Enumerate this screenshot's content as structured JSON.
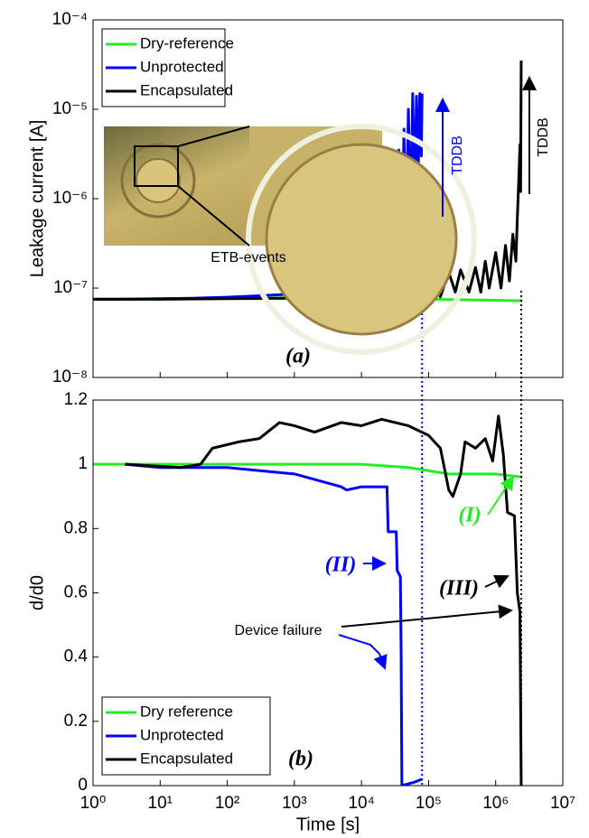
{
  "chart_data": [
    {
      "type": "line",
      "ylabel": "Leakage current [A]",
      "x_log": true,
      "y_log": true,
      "xlim": [
        1,
        10000000
      ],
      "ylim": [
        1e-08,
        0.0001
      ],
      "yticks": [
        {
          "value": 1e-08,
          "label": "10⁻⁸"
        },
        {
          "value": 1e-07,
          "label": "10⁻⁷"
        },
        {
          "value": 1e-06,
          "label": "10⁻⁶"
        },
        {
          "value": 1e-05,
          "label": "10⁻⁵"
        },
        {
          "value": 0.0001,
          "label": "10⁻⁴"
        }
      ],
      "legend": "upper left",
      "annotations": [
        "ETB-events",
        "TDDB",
        "TDDB",
        "(a)"
      ],
      "series": [
        {
          "name": "Dry-reference",
          "color": "#22ee22",
          "x": [
            1,
            10,
            100,
            1000,
            10000,
            100000,
            1000000,
            2500000
          ],
          "values": [
            7.5e-08,
            7.6e-08,
            7.7e-08,
            7.8e-08,
            7.7e-08,
            7.5e-08,
            7.3e-08,
            7.2e-08
          ]
        },
        {
          "name": "Unprotected",
          "color": "#0000ff",
          "x": [
            1,
            3,
            10,
            30,
            100,
            300,
            1000,
            3000,
            6000,
            10000,
            13000,
            15000,
            17000,
            20000,
            22000,
            25000,
            28000,
            30000,
            33000,
            36000,
            40000,
            43000,
            46000,
            50000,
            54000,
            58000,
            62000,
            66000,
            70000,
            74000,
            78000,
            80000
          ],
          "values": [
            7.5e-08,
            7.5e-08,
            7.6e-08,
            7.7e-08,
            7.9e-08,
            8.2e-08,
            8.6e-08,
            9e-08,
            9.5e-08,
            1e-07,
            1.1e-07,
            3e-07,
            1e-07,
            5e-07,
            1.2e-07,
            1.2e-06,
            1.5e-07,
            2e-06,
            2e-07,
            3.5e-06,
            2.5e-07,
            6e-06,
            3e-07,
            1e-05,
            5e-07,
            1.5e-05,
            1e-06,
            1.4e-05,
            2e-06,
            1.5e-05,
            3e-06,
            1.5e-05
          ]
        },
        {
          "name": "Encapsulated",
          "color": "#000000",
          "x": [
            1,
            10,
            100,
            1000,
            10000,
            50000,
            100000,
            120000,
            150000,
            200000,
            250000,
            300000,
            400000,
            500000,
            600000,
            700000,
            800000,
            1000000,
            1200000,
            1400000,
            1600000,
            1800000,
            2000000,
            2100000,
            2200000,
            2300000,
            2350000,
            2400000
          ],
          "values": [
            7.5e-08,
            7.5e-08,
            7.6e-08,
            7.7e-08,
            7.7e-08,
            7.8e-08,
            8e-08,
            1.5e-07,
            8e-08,
            1.5e-07,
            9e-08,
            1.6e-07,
            9e-08,
            1.7e-07,
            9e-08,
            2e-07,
            1e-07,
            2.5e-07,
            1e-07,
            3e-07,
            1.2e-07,
            4e-07,
            2e-07,
            6e-07,
            1.5e-06,
            4e-06,
            1.2e-06,
            3.5e-05
          ]
        }
      ]
    },
    {
      "type": "line",
      "xlabel": "Time [s]",
      "ylabel": "d/d0",
      "x_log": true,
      "xlim": [
        1,
        10000000
      ],
      "ylim": [
        0,
        1.2
      ],
      "xticks": [
        {
          "value": 1,
          "label": "10⁰"
        },
        {
          "value": 10,
          "label": "10¹"
        },
        {
          "value": 100,
          "label": "10²"
        },
        {
          "value": 1000,
          "label": "10³"
        },
        {
          "value": 10000,
          "label": "10⁴"
        },
        {
          "value": 100000,
          "label": "10⁵"
        },
        {
          "value": 1000000,
          "label": "10⁶"
        },
        {
          "value": 10000000,
          "label": "10⁷"
        }
      ],
      "yticks": [
        0,
        0.2,
        0.4,
        0.6,
        0.8,
        1,
        1.2
      ],
      "legend": "lower left",
      "failure_lines": [
        {
          "x": 80000,
          "color": "#0000ff"
        },
        {
          "x": 2400000,
          "color": "#000000"
        }
      ],
      "annotations": [
        "(b)",
        "(I)",
        "(II)",
        "(III)",
        "Device failure"
      ],
      "series": [
        {
          "name": "Dry reference",
          "color": "#22ee22",
          "x": [
            1,
            10,
            100,
            1000,
            10000,
            50000,
            100000,
            200000,
            300000,
            1000000,
            2500000
          ],
          "values": [
            1,
            1,
            1,
            1,
            1,
            0.99,
            0.98,
            0.97,
            0.97,
            0.97,
            0.96
          ]
        },
        {
          "name": "Unprotected",
          "color": "#0000ff",
          "x": [
            3,
            10,
            100,
            1000,
            5000,
            6000,
            10000,
            24000,
            25000,
            33000,
            34000,
            38000,
            39000,
            40000,
            60000,
            80000
          ],
          "values": [
            1,
            0.99,
            0.99,
            0.97,
            0.93,
            0.92,
            0.93,
            0.93,
            0.79,
            0.79,
            0.67,
            0.65,
            0.41,
            0,
            0.01,
            0.02
          ]
        },
        {
          "name": "Encapsulated",
          "color": "#000000",
          "x": [
            3,
            20,
            40,
            60,
            150,
            300,
            600,
            1000,
            2000,
            5000,
            10000,
            20000,
            50000,
            100000,
            150000,
            200000,
            230000,
            300000,
            350000,
            500000,
            700000,
            900000,
            1100000,
            1300000,
            1500000,
            1900000,
            2100000,
            2300000,
            2400000
          ],
          "values": [
            1,
            0.99,
            1,
            1.05,
            1.07,
            1.08,
            1.13,
            1.12,
            1.1,
            1.13,
            1.12,
            1.14,
            1.12,
            1.09,
            1.05,
            0.92,
            0.9,
            0.97,
            1.07,
            1.05,
            1.08,
            1.01,
            1.15,
            1.03,
            0.85,
            0.84,
            0.6,
            0.54,
            0
          ]
        }
      ]
    }
  ]
}
